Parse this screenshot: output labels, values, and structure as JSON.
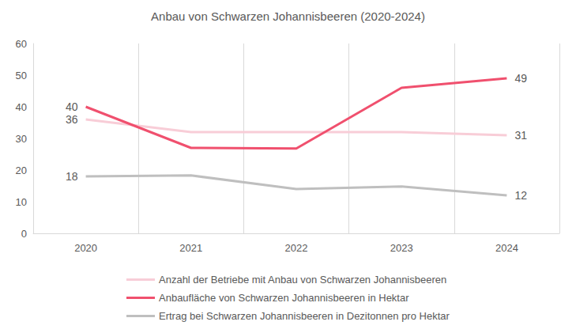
{
  "chart_data": {
    "type": "line",
    "title": "Anbau von Schwarzen Johannisbeeren (2020-2024)",
    "categories": [
      "2020",
      "2021",
      "2022",
      "2023",
      "2024"
    ],
    "series": [
      {
        "name": "Anzahl der Betriebe mit Anbau von Schwarzen Johannisbeeren",
        "color": "#f8cdd7",
        "values": [
          36,
          32,
          32,
          32,
          31
        ],
        "value_labels": [
          "36",
          null,
          null,
          null,
          "31"
        ]
      },
      {
        "name": "Anbaufläche von Schwarzen Johannisbeeren in Hektar",
        "color": "#f0506e",
        "values": [
          40,
          27,
          26.8,
          46,
          49
        ],
        "value_labels": [
          "40",
          null,
          null,
          null,
          "49"
        ]
      },
      {
        "name": "Ertrag bei Schwarzen Johannisbeeren in Dezitonnen pro Hektar",
        "color": "#bfbfbf",
        "values": [
          18,
          18.3,
          14,
          14.8,
          12
        ],
        "value_labels": [
          "18",
          null,
          null,
          null,
          "12"
        ]
      }
    ],
    "ylim": [
      0,
      60
    ],
    "yticks": [
      0,
      10,
      20,
      30,
      40,
      50,
      60
    ],
    "grid": true,
    "legend": "bottom",
    "data_labels": true
  }
}
